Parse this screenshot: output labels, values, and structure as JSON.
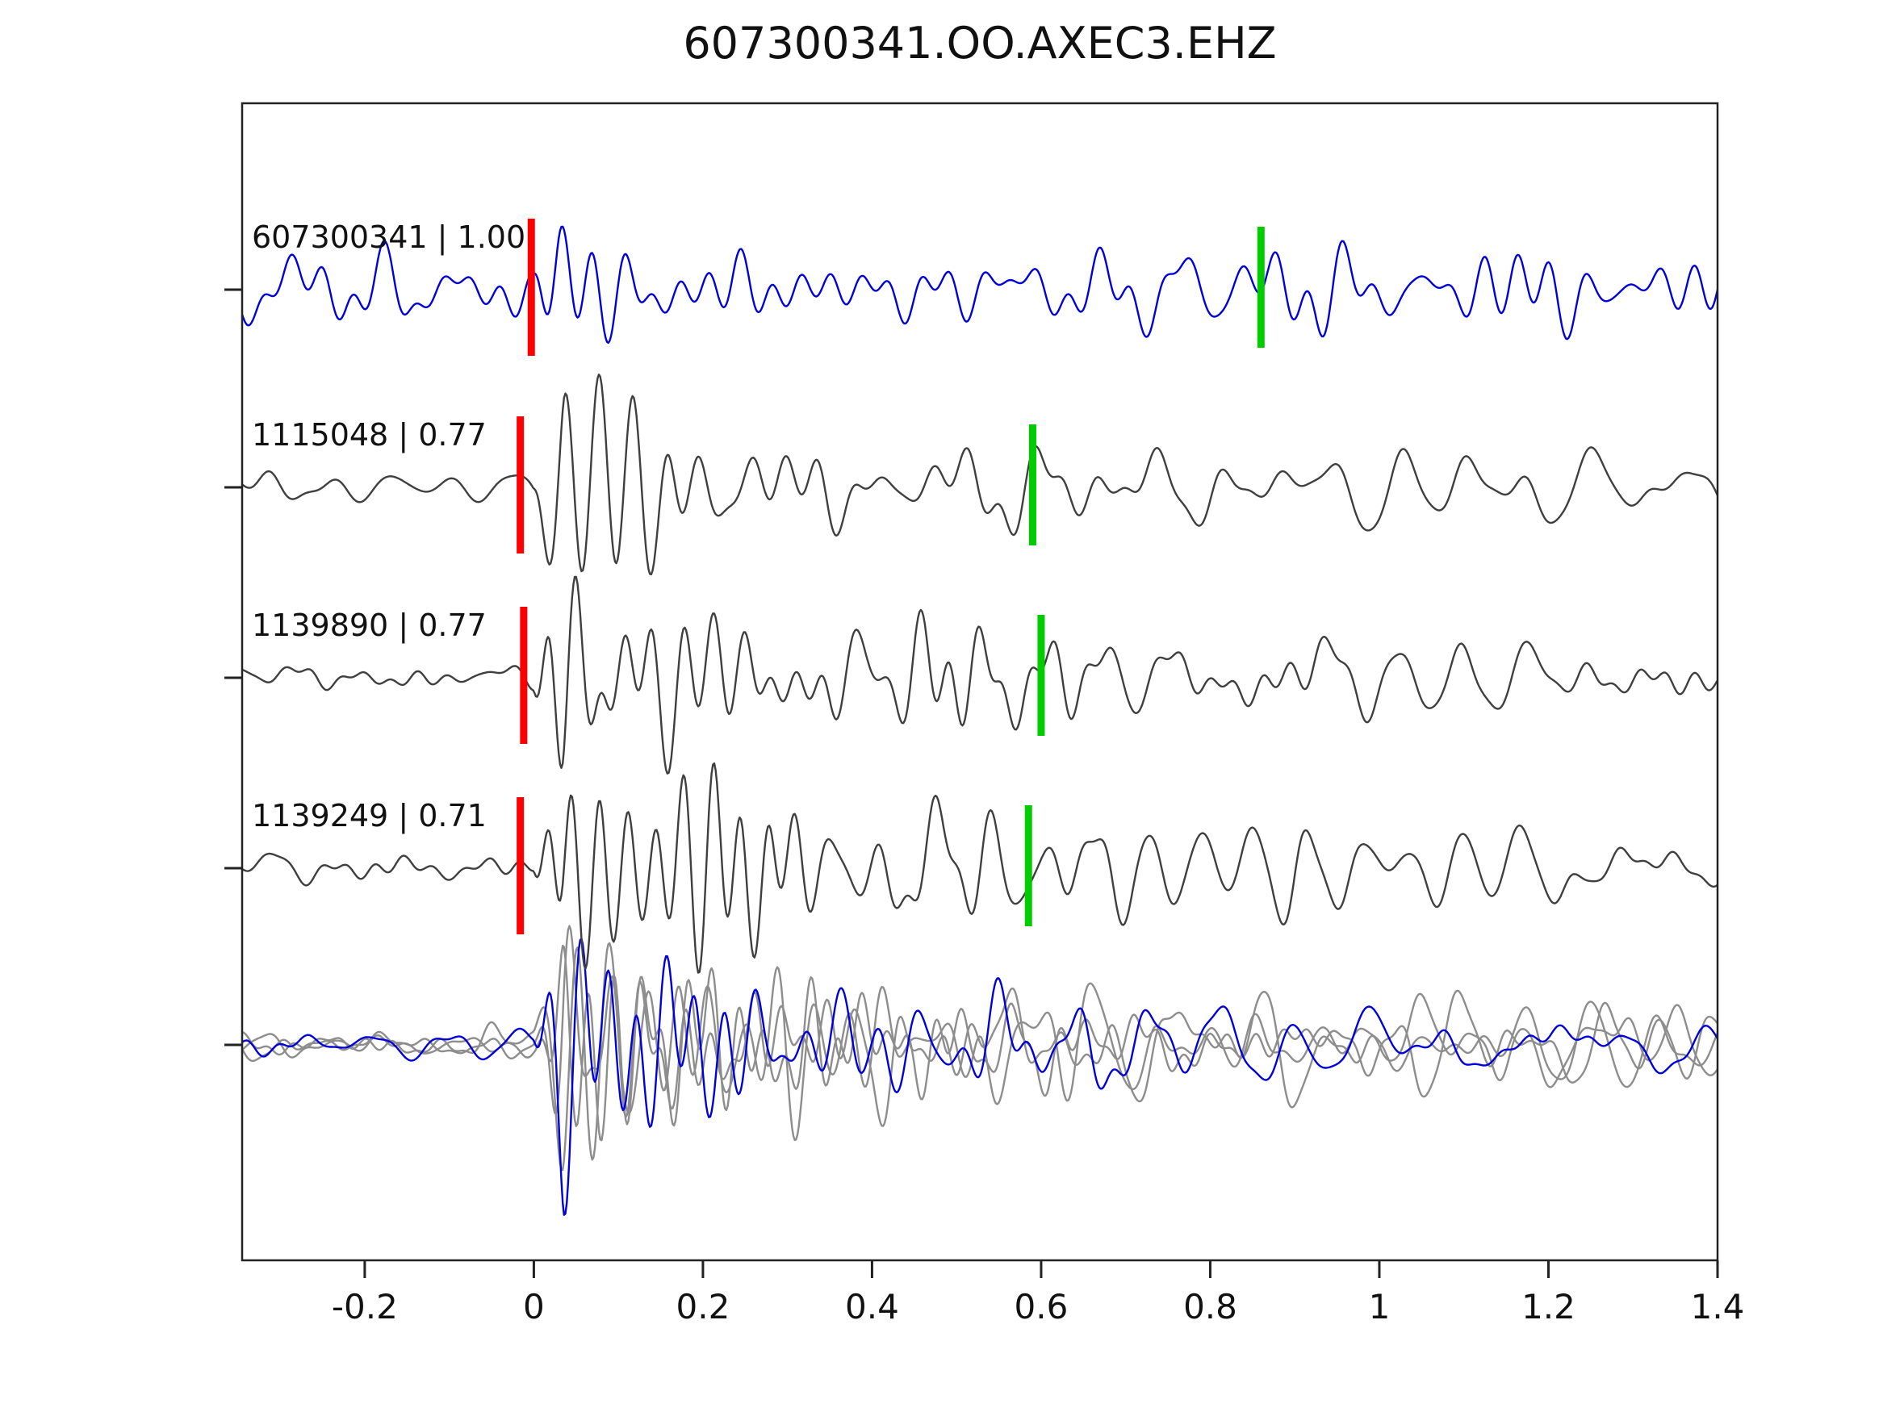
{
  "title": "607300341.OO.AXEC3.EHZ",
  "chart_data": {
    "type": "line",
    "title": "607300341.OO.AXEC3.EHZ",
    "xlabel": "",
    "ylabel": "",
    "xlim": [
      -0.345,
      1.4
    ],
    "grid": false,
    "legend": "none",
    "x_ticks": [
      -0.2,
      0,
      0.2,
      0.4,
      0.6,
      0.8,
      1,
      1.2,
      1.4
    ],
    "x_tick_labels": [
      "-0.2",
      "0",
      "0.2",
      "0.4",
      "0.6",
      "0.8",
      "1",
      "1.2",
      "1.4"
    ],
    "colors": {
      "template": "#0000dd",
      "match": "#3f3f3f",
      "overlay_gray": "#8d8d8d",
      "pick_red": "#ff0000",
      "pick_green": "#00cc00",
      "axis": "#222222",
      "text": "#111111"
    },
    "traces": [
      {
        "label": "607300341 | 1.00",
        "id": "607300341",
        "correlation": 1.0,
        "color_key": "template",
        "red_pick_x": -0.003,
        "green_pick_x": 0.86
      },
      {
        "label": "1115048 | 0.77",
        "id": "1115048",
        "correlation": 0.77,
        "color_key": "match",
        "red_pick_x": -0.016,
        "green_pick_x": 0.59
      },
      {
        "label": "1139890 | 0.77",
        "id": "1139890",
        "correlation": 0.77,
        "color_key": "match",
        "red_pick_x": -0.012,
        "green_pick_x": 0.6
      },
      {
        "label": "1139249 | 0.71",
        "id": "1139249",
        "correlation": 0.71,
        "color_key": "match",
        "red_pick_x": -0.016,
        "green_pick_x": 0.585
      }
    ],
    "overlay_row": {
      "description": "superposition of all aligned waveforms",
      "members": [
        {
          "color_key": "overlay_gray"
        },
        {
          "color_key": "overlay_gray"
        },
        {
          "color_key": "overlay_gray"
        },
        {
          "color_key": "template"
        }
      ]
    }
  }
}
